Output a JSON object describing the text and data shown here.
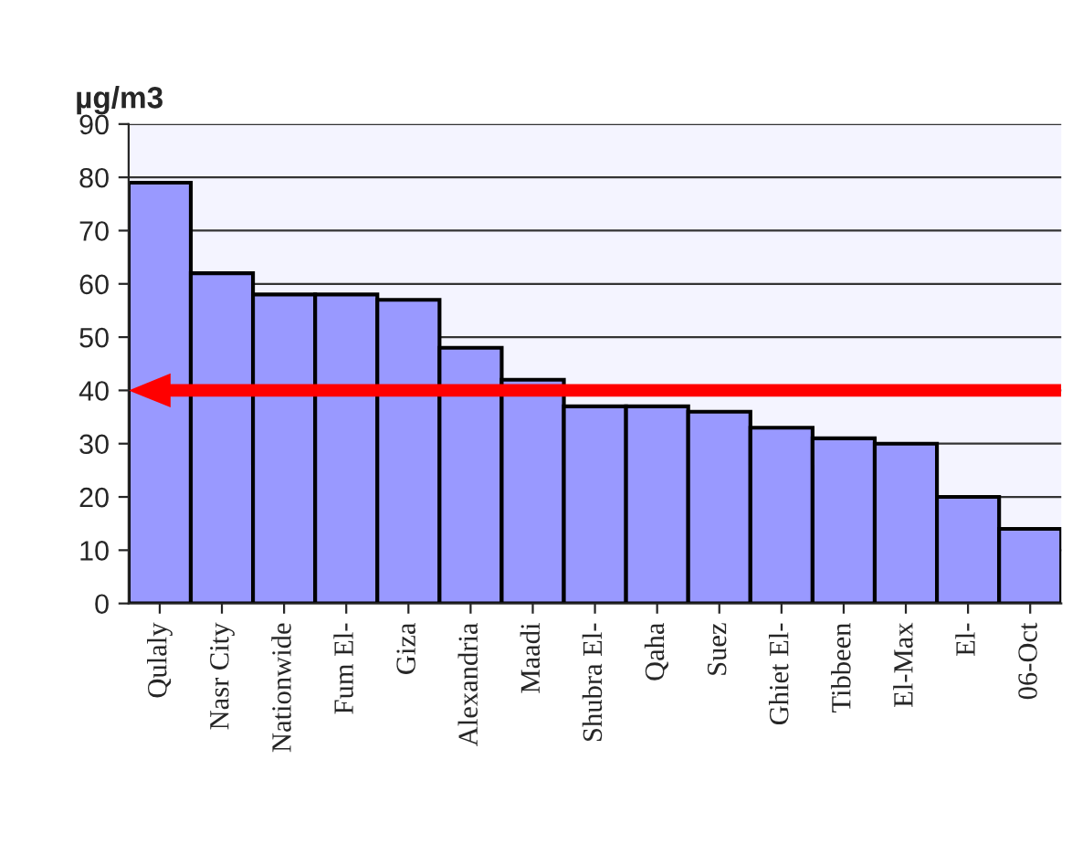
{
  "chart_data": {
    "type": "bar",
    "ylabel": "µg/m3",
    "categories": [
      "Qulaly",
      "Nasr City",
      "Nationwide",
      "Fum El-",
      "Giza",
      "Alexandria",
      "Maadi",
      "Shubra El-",
      "Qaha",
      "Suez",
      "Ghiet El-",
      "Tibbeen",
      "El-Max",
      "El-",
      "06-Oct"
    ],
    "values": [
      79,
      62,
      58,
      58,
      57,
      48,
      42,
      37,
      37,
      36,
      33,
      31,
      30,
      20,
      14
    ],
    "color": "#9999ff",
    "ylim": [
      0,
      90
    ],
    "yticks": [
      0,
      10,
      20,
      30,
      40,
      50,
      60,
      70,
      80,
      90
    ],
    "grid": "y",
    "ref_lines": [
      {
        "axis": "y",
        "value": 40,
        "color": "#ff0000"
      }
    ]
  }
}
